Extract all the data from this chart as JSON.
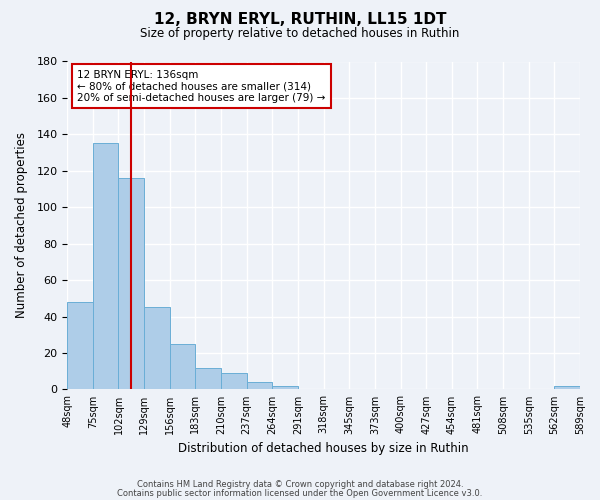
{
  "title": "12, BRYN ERYL, RUTHIN, LL15 1DT",
  "subtitle": "Size of property relative to detached houses in Ruthin",
  "xlabel": "Distribution of detached houses by size in Ruthin",
  "ylabel": "Number of detached properties",
  "bar_values": [
    48,
    135,
    116,
    45,
    25,
    12,
    9,
    4,
    2,
    0,
    0,
    0,
    0,
    0,
    0,
    0,
    0,
    0,
    0,
    2
  ],
  "tick_labels": [
    "48sqm",
    "75sqm",
    "102sqm",
    "129sqm",
    "156sqm",
    "183sqm",
    "210sqm",
    "237sqm",
    "264sqm",
    "291sqm",
    "318sqm",
    "345sqm",
    "373sqm",
    "400sqm",
    "427sqm",
    "454sqm",
    "481sqm",
    "508sqm",
    "535sqm",
    "562sqm",
    "589sqm"
  ],
  "bar_color": "#aecde8",
  "bar_edge_color": "#6aaed6",
  "property_line_x": 2.5,
  "property_line_color": "#cc0000",
  "annotation_box_text": "12 BRYN ERYL: 136sqm\n← 80% of detached houses are smaller (314)\n20% of semi-detached houses are larger (79) →",
  "ylim": [
    0,
    180
  ],
  "yticks": [
    0,
    20,
    40,
    60,
    80,
    100,
    120,
    140,
    160,
    180
  ],
  "footer_line1": "Contains HM Land Registry data © Crown copyright and database right 2024.",
  "footer_line2": "Contains public sector information licensed under the Open Government Licence v3.0.",
  "background_color": "#eef2f8",
  "grid_color": "#ffffff",
  "fig_width": 6.0,
  "fig_height": 5.0
}
